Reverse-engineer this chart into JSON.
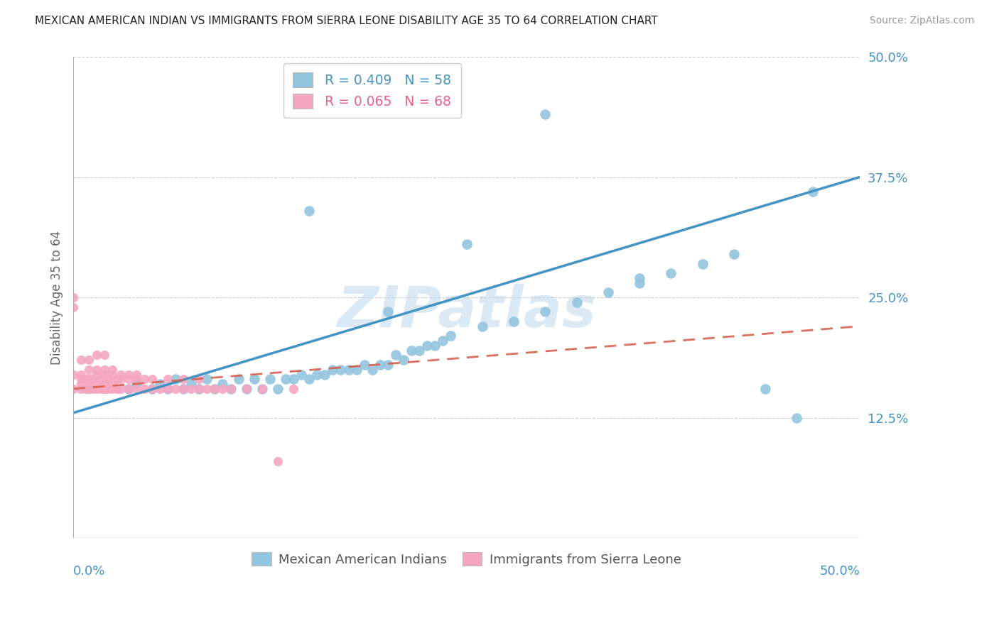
{
  "title": "MEXICAN AMERICAN INDIAN VS IMMIGRANTS FROM SIERRA LEONE DISABILITY AGE 35 TO 64 CORRELATION CHART",
  "source": "Source: ZipAtlas.com",
  "legend_blue_r": "R = 0.409",
  "legend_blue_n": "N = 58",
  "legend_pink_r": "R = 0.065",
  "legend_pink_n": "N = 68",
  "legend_blue_label": "Mexican American Indians",
  "legend_pink_label": "Immigrants from Sierra Leone",
  "blue_color": "#92c5de",
  "pink_color": "#f4a6c0",
  "blue_line_color": "#4393c3",
  "pink_line_color": "#d6604d",
  "watermark": "ZIPatlas",
  "xmin": 0.0,
  "xmax": 0.5,
  "ymin": 0.0,
  "ymax": 0.5,
  "right_yticks": [
    "50.0%",
    "37.5%",
    "25.0%",
    "12.5%"
  ],
  "right_ytick_vals": [
    0.5,
    0.375,
    0.25,
    0.125
  ],
  "blue_scatter_x": [
    0.035,
    0.04,
    0.05,
    0.055,
    0.06,
    0.065,
    0.07,
    0.075,
    0.08,
    0.085,
    0.09,
    0.095,
    0.1,
    0.105,
    0.11,
    0.115,
    0.12,
    0.125,
    0.13,
    0.135,
    0.14,
    0.145,
    0.15,
    0.155,
    0.16,
    0.165,
    0.17,
    0.175,
    0.18,
    0.185,
    0.19,
    0.195,
    0.2,
    0.205,
    0.21,
    0.215,
    0.22,
    0.225,
    0.23,
    0.235,
    0.24,
    0.26,
    0.28,
    0.3,
    0.32,
    0.34,
    0.36,
    0.38,
    0.4,
    0.42,
    0.44,
    0.46,
    0.3,
    0.36,
    0.25,
    0.2,
    0.15,
    0.47
  ],
  "blue_scatter_y": [
    0.155,
    0.16,
    0.155,
    0.16,
    0.155,
    0.165,
    0.155,
    0.16,
    0.155,
    0.165,
    0.155,
    0.16,
    0.155,
    0.165,
    0.155,
    0.165,
    0.155,
    0.165,
    0.155,
    0.165,
    0.165,
    0.17,
    0.165,
    0.17,
    0.17,
    0.175,
    0.175,
    0.175,
    0.175,
    0.18,
    0.175,
    0.18,
    0.18,
    0.19,
    0.185,
    0.195,
    0.195,
    0.2,
    0.2,
    0.205,
    0.21,
    0.22,
    0.225,
    0.235,
    0.245,
    0.255,
    0.265,
    0.275,
    0.285,
    0.295,
    0.155,
    0.125,
    0.44,
    0.27,
    0.305,
    0.235,
    0.34,
    0.36
  ],
  "pink_scatter_x": [
    0.0,
    0.0,
    0.005,
    0.005,
    0.005,
    0.008,
    0.008,
    0.01,
    0.01,
    0.01,
    0.012,
    0.012,
    0.015,
    0.015,
    0.015,
    0.018,
    0.018,
    0.02,
    0.02,
    0.02,
    0.022,
    0.022,
    0.025,
    0.025,
    0.025,
    0.028,
    0.028,
    0.03,
    0.03,
    0.035,
    0.035,
    0.04,
    0.04,
    0.045,
    0.045,
    0.05,
    0.055,
    0.06,
    0.065,
    0.07,
    0.075,
    0.08,
    0.085,
    0.09,
    0.095,
    0.1,
    0.11,
    0.12,
    0.13,
    0.14,
    0.0,
    0.005,
    0.01,
    0.015,
    0.02,
    0.025,
    0.03,
    0.035,
    0.04,
    0.05,
    0.06,
    0.07,
    0.08,
    0.005,
    0.01,
    0.015,
    0.02,
    0.0
  ],
  "pink_scatter_y": [
    0.155,
    0.24,
    0.155,
    0.16,
    0.165,
    0.155,
    0.165,
    0.155,
    0.16,
    0.165,
    0.155,
    0.165,
    0.155,
    0.16,
    0.17,
    0.155,
    0.165,
    0.155,
    0.16,
    0.17,
    0.155,
    0.165,
    0.155,
    0.16,
    0.17,
    0.155,
    0.165,
    0.155,
    0.165,
    0.155,
    0.165,
    0.155,
    0.165,
    0.155,
    0.165,
    0.155,
    0.155,
    0.155,
    0.155,
    0.155,
    0.155,
    0.155,
    0.155,
    0.155,
    0.155,
    0.155,
    0.155,
    0.155,
    0.08,
    0.155,
    0.17,
    0.17,
    0.175,
    0.175,
    0.175,
    0.175,
    0.17,
    0.17,
    0.17,
    0.165,
    0.165,
    0.165,
    0.165,
    0.185,
    0.185,
    0.19,
    0.19,
    0.25
  ]
}
